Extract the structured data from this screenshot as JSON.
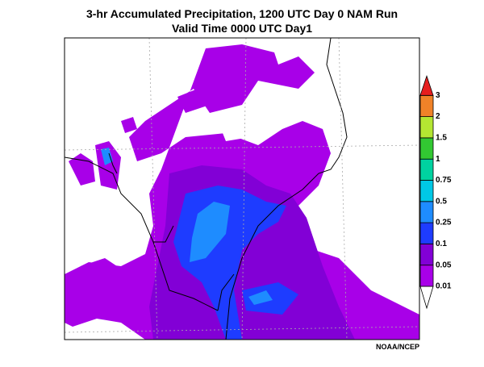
{
  "title": [
    "3-hr Accumulated Precipitation, 1200 UTC Day 0 NAM Run",
    "Valid Time 0000 UTC Day1"
  ],
  "colorbar": {
    "levels": [
      0.01,
      0.05,
      0.1,
      0.25,
      0.5,
      0.75,
      1,
      1.5,
      2,
      3
    ],
    "colors": [
      "#a800e8",
      "#8200d6",
      "#1e3cff",
      "#1e8cff",
      "#00c8e6",
      "#00d2a0",
      "#32c832",
      "#b4e632",
      "#f08228",
      "#e61e1e"
    ]
  },
  "credit": "NOAA/NCEP"
}
